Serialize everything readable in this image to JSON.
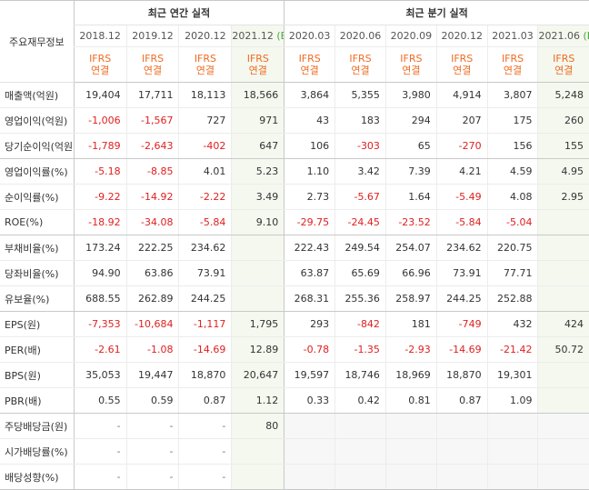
{
  "header": {
    "row_header_label": "주요재무정보",
    "annual_group_label": "최근 연간 실적",
    "quarter_group_label": "최근 분기 실적",
    "periods": [
      {
        "label": "2018.12",
        "est": ""
      },
      {
        "label": "2019.12",
        "est": ""
      },
      {
        "label": "2020.12",
        "est": ""
      },
      {
        "label": "2021.12",
        "est": "(E)"
      },
      {
        "label": "2020.03",
        "est": ""
      },
      {
        "label": "2020.06",
        "est": ""
      },
      {
        "label": "2020.09",
        "est": ""
      },
      {
        "label": "2020.12",
        "est": ""
      },
      {
        "label": "2021.03",
        "est": ""
      },
      {
        "label": "2021.06",
        "est": "(E)"
      }
    ],
    "ifrs_label": "IFRS",
    "consolidated_label": "연결"
  },
  "rows": [
    {
      "label": "매출액(억원)",
      "values": [
        "19,404",
        "17,711",
        "18,113",
        "18,566",
        "3,864",
        "5,355",
        "3,980",
        "4,914",
        "3,807",
        "5,248"
      ]
    },
    {
      "label": "영업이익(억원)",
      "values": [
        "-1,006",
        "-1,567",
        "727",
        "971",
        "43",
        "183",
        "294",
        "207",
        "175",
        "260"
      ]
    },
    {
      "label": "당기순이익(억원)",
      "values": [
        "-1,789",
        "-2,643",
        "-402",
        "647",
        "106",
        "-303",
        "65",
        "-270",
        "156",
        "155"
      ]
    },
    {
      "label": "영업이익률(%)",
      "values": [
        "-5.18",
        "-8.85",
        "4.01",
        "5.23",
        "1.10",
        "3.42",
        "7.39",
        "4.21",
        "4.59",
        "4.95"
      ]
    },
    {
      "label": "순이익률(%)",
      "values": [
        "-9.22",
        "-14.92",
        "-2.22",
        "3.49",
        "2.73",
        "-5.67",
        "1.64",
        "-5.49",
        "4.08",
        "2.95"
      ]
    },
    {
      "label": "ROE(%)",
      "values": [
        "-18.92",
        "-34.08",
        "-5.84",
        "9.10",
        "-29.75",
        "-24.45",
        "-23.52",
        "-5.84",
        "-5.04",
        ""
      ]
    },
    {
      "label": "부채비율(%)",
      "values": [
        "173.24",
        "222.25",
        "234.62",
        "",
        "222.43",
        "249.54",
        "254.07",
        "234.62",
        "220.75",
        ""
      ]
    },
    {
      "label": "당좌비율(%)",
      "values": [
        "94.90",
        "63.86",
        "73.91",
        "",
        "63.87",
        "65.69",
        "66.96",
        "73.91",
        "77.71",
        ""
      ]
    },
    {
      "label": "유보율(%)",
      "values": [
        "688.55",
        "262.89",
        "244.25",
        "",
        "268.31",
        "255.36",
        "258.97",
        "244.25",
        "252.88",
        ""
      ]
    },
    {
      "label": "EPS(원)",
      "values": [
        "-7,353",
        "-10,684",
        "-1,117",
        "1,795",
        "293",
        "-842",
        "181",
        "-749",
        "432",
        "424"
      ]
    },
    {
      "label": "PER(배)",
      "values": [
        "-2.61",
        "-1.08",
        "-14.69",
        "12.89",
        "-0.78",
        "-1.35",
        "-2.93",
        "-14.69",
        "-21.42",
        "50.72"
      ]
    },
    {
      "label": "BPS(원)",
      "values": [
        "35,053",
        "19,447",
        "18,870",
        "20,647",
        "19,597",
        "18,746",
        "18,969",
        "18,870",
        "19,301",
        ""
      ]
    },
    {
      "label": "PBR(배)",
      "values": [
        "0.55",
        "0.59",
        "0.87",
        "1.12",
        "0.33",
        "0.42",
        "0.81",
        "0.87",
        "1.09",
        ""
      ]
    },
    {
      "label": "주당배당금(원)",
      "values": [
        "-",
        "-",
        "-",
        "80",
        "",
        "",
        "",
        "",
        "",
        ""
      ]
    },
    {
      "label": "시가배당률(%)",
      "values": [
        "-",
        "-",
        "-",
        "",
        "",
        "",
        "",
        "",
        "",
        ""
      ]
    },
    {
      "label": "배당성향(%)",
      "values": [
        "-",
        "-",
        "-",
        "",
        "",
        "",
        "",
        "",
        "",
        ""
      ]
    }
  ],
  "colors": {
    "negative": "#e02020",
    "ifrs": "#ef6b22",
    "estimate_mark": "#4aa43c",
    "estimate_bg": "#f4f8ef",
    "empty_bg": "#f7f7f7"
  }
}
